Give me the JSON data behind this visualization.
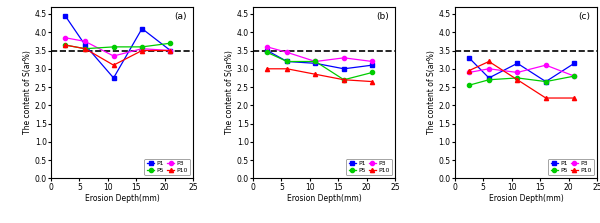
{
  "x": [
    2.5,
    6,
    11,
    16,
    21
  ],
  "subplot_a": {
    "P1": [
      4.45,
      3.65,
      2.75,
      4.1,
      3.5
    ],
    "P3": [
      3.85,
      3.75,
      3.35,
      3.55,
      3.5
    ],
    "P5": [
      3.65,
      3.55,
      3.6,
      3.6,
      3.7
    ],
    "P10": [
      3.65,
      3.55,
      3.1,
      3.5,
      3.5
    ]
  },
  "subplot_b": {
    "P1": [
      3.5,
      3.2,
      3.15,
      3.0,
      3.1
    ],
    "P3": [
      3.6,
      3.45,
      3.2,
      3.3,
      3.2
    ],
    "P5": [
      3.45,
      3.2,
      3.2,
      2.7,
      2.9
    ],
    "P10": [
      3.0,
      3.0,
      2.85,
      2.7,
      2.65
    ]
  },
  "subplot_c": {
    "P1": [
      3.3,
      2.75,
      3.15,
      2.65,
      3.15
    ],
    "P3": [
      2.9,
      3.0,
      2.9,
      3.1,
      2.8
    ],
    "P5": [
      2.55,
      2.7,
      2.75,
      2.65,
      2.8
    ],
    "P10": [
      2.95,
      3.2,
      2.7,
      2.2,
      2.2
    ]
  },
  "colors": {
    "P1": "#0000FF",
    "P3": "#FF00FF",
    "P5": "#00CC00",
    "P10": "#FF0000"
  },
  "markers": {
    "P1": "s",
    "P3": "o",
    "P5": "o",
    "P10": "^"
  },
  "dashed_line_y": 3.5,
  "ylim": [
    0,
    4.7
  ],
  "xlim": [
    0,
    25
  ],
  "yticks": [
    0,
    0.5,
    1.0,
    1.5,
    2.0,
    2.5,
    3.0,
    3.5,
    4.0,
    4.5
  ],
  "xticks": [
    0,
    5,
    10,
    15,
    20,
    25
  ],
  "ylabel": "The content of S(ar%)",
  "xlabel": "Erosion Depth(mm)",
  "panel_labels": [
    "(a)",
    "(b)",
    "(c)"
  ]
}
